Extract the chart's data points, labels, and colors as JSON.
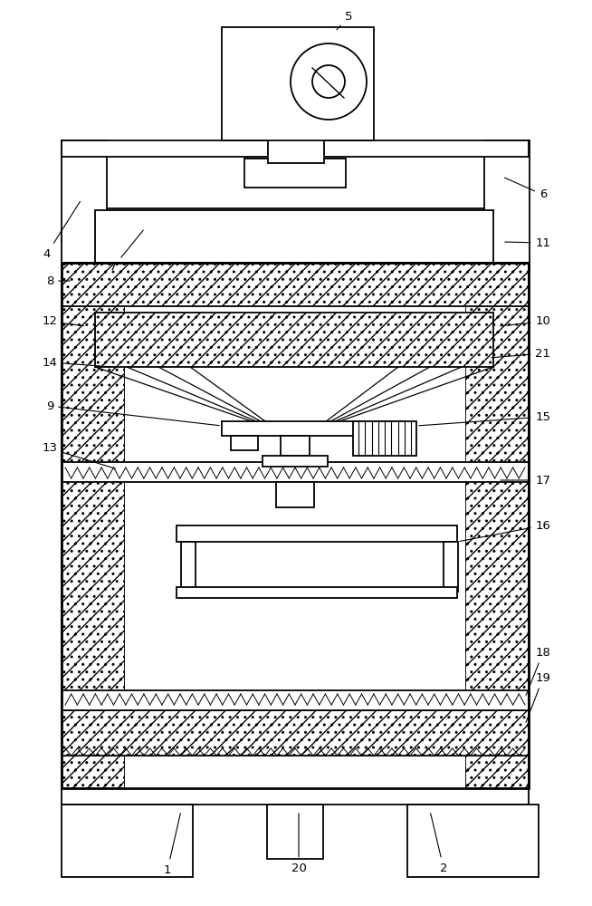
{
  "bg_color": "#ffffff",
  "lc": "#000000",
  "fig_width": 6.54,
  "fig_height": 10.0,
  "dpi": 100
}
